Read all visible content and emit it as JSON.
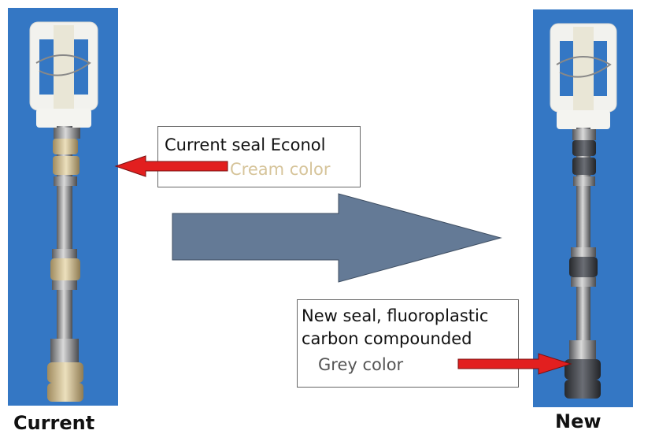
{
  "left": {
    "caption": "Current",
    "callout_line1": "Current seal Econol",
    "callout_line2": "Cream color",
    "seal_color": "#d6c49a"
  },
  "right": {
    "caption": "New",
    "callout_line1": "New seal, fluoroplastic",
    "callout_line2": "carbon compounded",
    "callout_line3": "Grey color",
    "seal_color": "#4a4d55"
  },
  "colors": {
    "panel_bg": "#3477c4",
    "big_arrow": "#647a96",
    "pointer_arrow": "#e21f1f"
  }
}
